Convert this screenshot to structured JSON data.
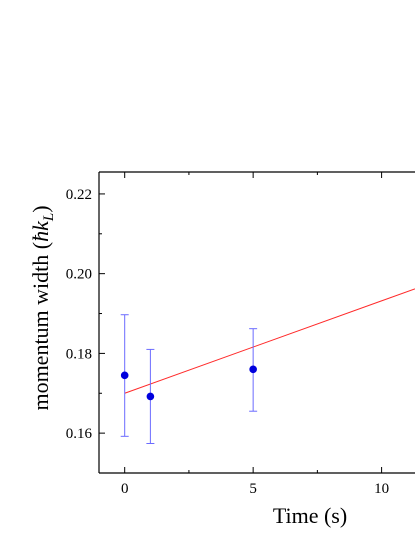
{
  "chart_data": {
    "type": "scatter",
    "xlabel": "Time (s)",
    "ylabel": "momentum width (",
    "ylabel_symbol": "ħk",
    "ylabel_subscript": "L",
    "ylabel_close": ")",
    "xlim": [
      -1,
      11.3
    ],
    "ylim": [
      0.15,
      0.2255
    ],
    "x_ticks": [
      0,
      5,
      10
    ],
    "x_tick_labels": [
      "0",
      "5",
      "10"
    ],
    "y_ticks": [
      0.16,
      0.18,
      0.2,
      0.22
    ],
    "y_tick_labels": [
      "0.16",
      "0.18",
      "0.20",
      "0.22"
    ],
    "points": [
      {
        "x": 0,
        "y": 0.1745,
        "err_low": 0.1592,
        "err_high": 0.1897
      },
      {
        "x": 1,
        "y": 0.1692,
        "err_low": 0.1574,
        "err_high": 0.181
      },
      {
        "x": 5,
        "y": 0.176,
        "err_low": 0.1655,
        "err_high": 0.1862
      }
    ],
    "fit_line": {
      "x0": 0,
      "y0": 0.17,
      "x1": 11.3,
      "y1": 0.1962
    },
    "colors": {
      "points": "#0000dd",
      "errorbars": "#6b6bff",
      "fit": "#ff2a2a",
      "axes": "#000000"
    }
  }
}
